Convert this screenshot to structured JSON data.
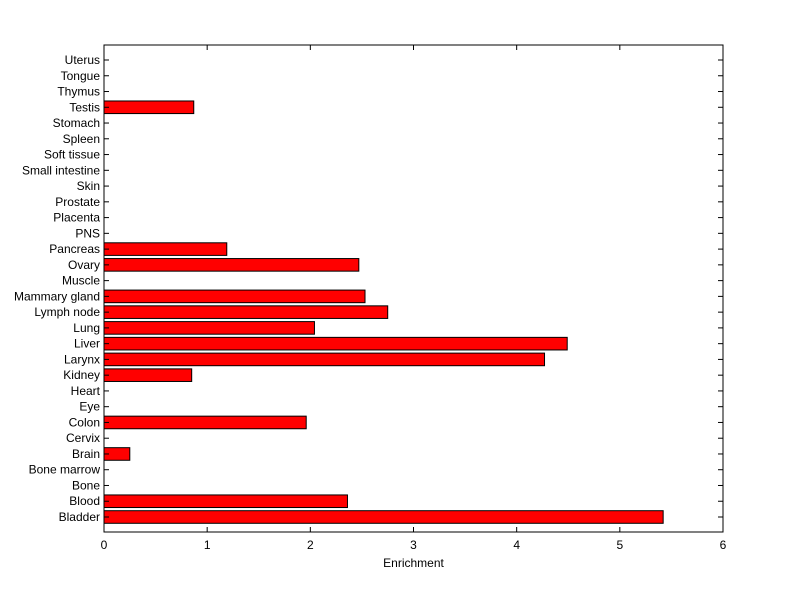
{
  "chart_data": {
    "type": "bar",
    "orientation": "horizontal",
    "title": "",
    "xlabel": "Enrichment",
    "ylabel": "",
    "xlim": [
      0,
      6
    ],
    "xticks": [
      "0",
      "1",
      "2",
      "3",
      "4",
      "5",
      "6"
    ],
    "grid": false,
    "bar_color": "#ff0000",
    "categories": [
      "Bladder",
      "Blood",
      "Bone",
      "Bone marrow",
      "Brain",
      "Cervix",
      "Colon",
      "Eye",
      "Heart",
      "Kidney",
      "Larynx",
      "Liver",
      "Lung",
      "Lymph node",
      "Mammary gland",
      "Muscle",
      "Ovary",
      "Pancreas",
      "PNS",
      "Placenta",
      "Prostate",
      "Skin",
      "Small intestine",
      "Soft tissue",
      "Spleen",
      "Stomach",
      "Testis",
      "Thymus",
      "Tongue",
      "Uterus"
    ],
    "values": [
      5.42,
      2.36,
      0,
      0,
      0.25,
      0,
      1.96,
      0,
      0,
      0.85,
      4.27,
      4.49,
      2.04,
      2.75,
      2.53,
      0,
      2.47,
      1.19,
      0,
      0,
      0,
      0,
      0,
      0,
      0,
      0,
      0.87,
      0,
      0,
      0
    ]
  }
}
